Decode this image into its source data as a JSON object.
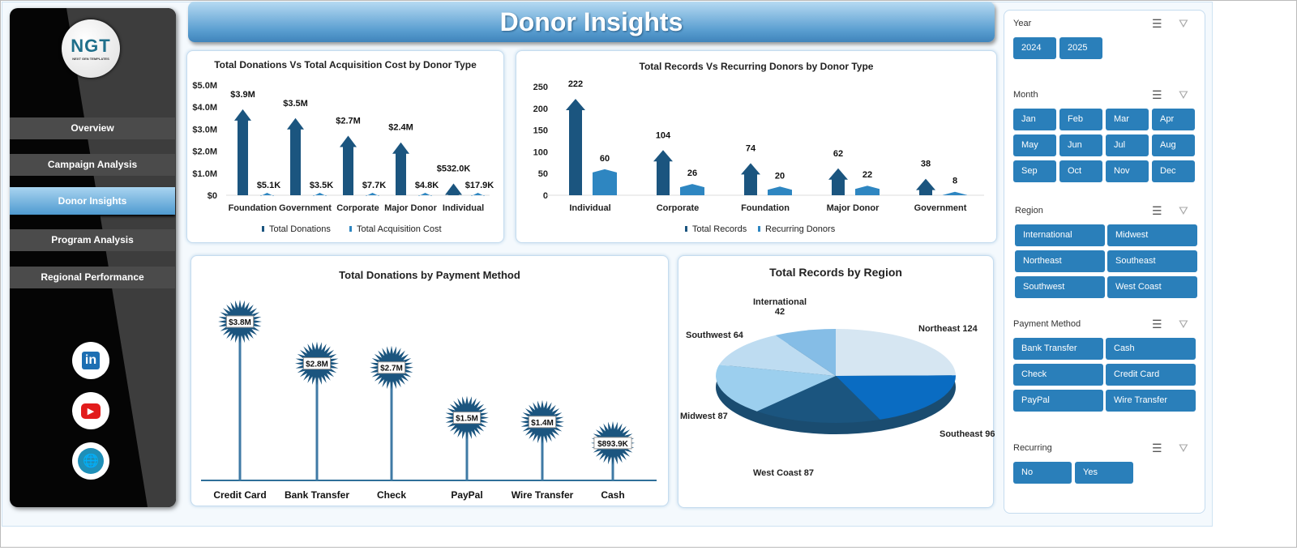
{
  "header": {
    "title": "Donor Insights"
  },
  "sidebar": {
    "logo_text": "NGT",
    "logo_sub": "NEXT GEN TEMPLATES",
    "items": [
      {
        "label": "Overview"
      },
      {
        "label": "Campaign Analysis"
      },
      {
        "label": "Donor Insights",
        "active": true
      },
      {
        "label": "Program Analysis"
      },
      {
        "label": "Regional Performance"
      }
    ],
    "social": [
      {
        "icon": "linkedin-icon",
        "text": "in"
      },
      {
        "icon": "youtube-icon",
        "text": "▶"
      },
      {
        "icon": "globe-icon",
        "text": "🌐"
      }
    ]
  },
  "colors": {
    "primary": "#1b557f",
    "secondary": "#2e86c1",
    "slicer": "#2a7fba"
  },
  "chart_data": [
    {
      "type": "bar",
      "title": "Total Donations Vs Total Acquisition Cost by Donor Type",
      "categories": [
        "Foundation",
        "Government",
        "Corporate",
        "Major Donor",
        "Individual"
      ],
      "ylim": [
        0,
        5000000
      ],
      "yticks": [
        "$0",
        "$1.0M",
        "$2.0M",
        "$3.0M",
        "$4.0M",
        "$5.0M"
      ],
      "series": [
        {
          "name": "Total Donations",
          "values": [
            3900000,
            3500000,
            2700000,
            2400000,
            532000
          ],
          "labels": [
            "$3.9M",
            "$3.5M",
            "$2.7M",
            "$2.4M",
            "$532.0K"
          ]
        },
        {
          "name": "Total Acquisition Cost",
          "values": [
            5100,
            3500,
            7700,
            4800,
            17900
          ],
          "labels": [
            "$5.1K",
            "$3.5K",
            "$7.7K",
            "$4.8K",
            "$17.9K"
          ]
        }
      ],
      "legend": "bottom"
    },
    {
      "type": "bar",
      "title": "Total Records Vs Recurring Donors by Donor Type",
      "categories": [
        "Individual",
        "Corporate",
        "Foundation",
        "Major Donor",
        "Government"
      ],
      "ylim": [
        0,
        250
      ],
      "yticks": [
        "0",
        "50",
        "100",
        "150",
        "200",
        "250"
      ],
      "series": [
        {
          "name": "Total Records",
          "values": [
            222,
            104,
            74,
            62,
            38
          ],
          "labels": [
            "222",
            "104",
            "74",
            "62",
            "38"
          ]
        },
        {
          "name": "Recurring Donors",
          "values": [
            60,
            26,
            20,
            22,
            8
          ],
          "labels": [
            "60",
            "26",
            "20",
            "22",
            "8"
          ]
        }
      ],
      "legend": "bottom"
    },
    {
      "type": "bar",
      "title": "Total Donations by Payment Method",
      "categories": [
        "Credit Card",
        "Bank Transfer",
        "Check",
        "PayPal",
        "Wire Transfer",
        "Cash"
      ],
      "values": [
        3800000,
        2800000,
        2700000,
        1500000,
        1400000,
        893900
      ],
      "labels": [
        "$3.8M",
        "$2.8M",
        "$2.7M",
        "$1.5M",
        "$1.4M",
        "$893.9K"
      ]
    },
    {
      "type": "pie",
      "title": "Total Records by Region",
      "categories": [
        "Northeast",
        "Southeast",
        "West Coast",
        "Midwest",
        "Southwest",
        "International"
      ],
      "values": [
        124,
        96,
        87,
        87,
        64,
        42
      ],
      "colors": [
        "#d6e6f2",
        "#0a6cc2",
        "#1b557f",
        "#9ccfee",
        "#bedcf1",
        "#85bde6"
      ]
    }
  ],
  "slicers": [
    {
      "title": "Year",
      "items": [
        "2024",
        "2025"
      ]
    },
    {
      "title": "Month",
      "items": [
        "Jan",
        "Feb",
        "Mar",
        "Apr",
        "May",
        "Jun",
        "Jul",
        "Aug",
        "Sep",
        "Oct",
        "Nov",
        "Dec"
      ]
    },
    {
      "title": "Region",
      "items": [
        "International",
        "Midwest",
        "Northeast",
        "Southeast",
        "Southwest",
        "West Coast"
      ]
    },
    {
      "title": "Payment Method",
      "items": [
        "Bank Transfer",
        "Cash",
        "Check",
        "Credit Card",
        "PayPal",
        "Wire Transfer"
      ]
    },
    {
      "title": "Recurring",
      "items": [
        "No",
        "Yes"
      ]
    }
  ]
}
